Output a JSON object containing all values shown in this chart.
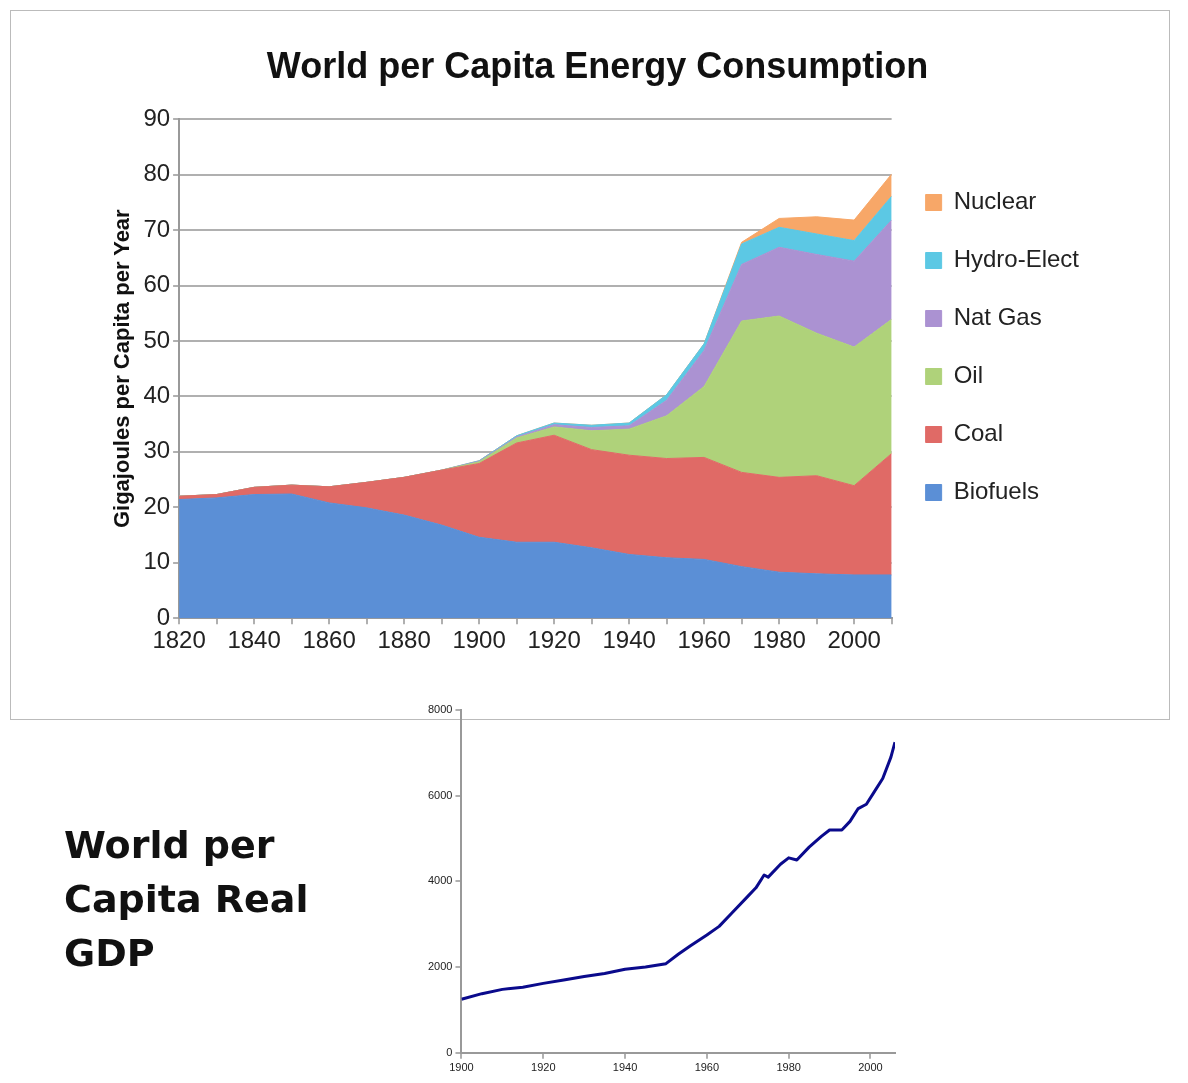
{
  "chart_data": [
    {
      "type": "area",
      "title": "World per Capita Energy Consumption",
      "ylabel": "Gigajoules per Capita per Year",
      "stacked": true,
      "x": [
        1820,
        1830,
        1840,
        1850,
        1860,
        1870,
        1880,
        1890,
        1900,
        1910,
        1920,
        1930,
        1940,
        1950,
        1960,
        1970,
        1980,
        1990,
        2000,
        2010
      ],
      "xlim": [
        1820,
        2010
      ],
      "xticks": [
        1820,
        {
          "value": 1830,
          "label": null
        },
        1840,
        {
          "value": 1850,
          "label": null
        },
        1860,
        {
          "value": 1870,
          "label": null
        },
        1880,
        {
          "value": 1890,
          "label": null
        },
        1900,
        {
          "value": 1910,
          "label": null
        },
        1920,
        {
          "value": 1930,
          "label": null
        },
        1940,
        {
          "value": 1950,
          "label": null
        },
        1960,
        {
          "value": 1970,
          "label": null
        },
        1980,
        {
          "value": 1990,
          "label": null
        },
        2000,
        {
          "value": 2010,
          "label": null
        }
      ],
      "ylim": [
        0,
        90
      ],
      "yticks": [
        0,
        10,
        20,
        30,
        40,
        50,
        60,
        70,
        80,
        90
      ],
      "grid": "y",
      "legend": "right",
      "marker": "none",
      "series": [
        {
          "name": "Biofuels",
          "color": "#5b8fd6",
          "values": [
            21.4,
            21.7,
            22.3,
            22.4,
            20.8,
            19.9,
            18.6,
            16.8,
            14.6,
            13.7,
            13.7,
            12.7,
            11.5,
            10.9,
            10.6,
            9.3,
            8.3,
            8.0,
            7.8,
            7.8
          ]
        },
        {
          "name": "Coal",
          "color": "#e06a66",
          "values": [
            0.6,
            0.6,
            1.3,
            1.6,
            2.9,
            4.6,
            6.8,
            9.9,
            13.3,
            17.9,
            19.3,
            17.7,
            17.9,
            17.9,
            18.4,
            17.0,
            17.1,
            17.7,
            16.1,
            21.9
          ]
        },
        {
          "name": "Oil",
          "color": "#afd27a",
          "values": [
            0,
            0,
            0,
            0,
            0,
            0,
            0,
            0,
            0.3,
            0.9,
            1.5,
            3.4,
            4.7,
            7.7,
            12.8,
            27.3,
            29.1,
            25.7,
            25.0,
            24.2
          ]
        },
        {
          "name": "Nat Gas",
          "color": "#ab92d2",
          "values": [
            0,
            0,
            0,
            0,
            0,
            0,
            0,
            0,
            0.1,
            0.2,
            0.4,
            0.6,
            0.6,
            2.8,
            6.5,
            10.2,
            12.4,
            14.2,
            15.5,
            17.9
          ]
        },
        {
          "name": "Hydro-Elect",
          "color": "#5cc8e4",
          "values": [
            0,
            0,
            0,
            0,
            0,
            0,
            0,
            0,
            0.1,
            0.2,
            0.3,
            0.4,
            0.5,
            1.0,
            1.2,
            3.7,
            3.6,
            3.7,
            3.7,
            4.3
          ]
        },
        {
          "name": "Nuclear",
          "color": "#f7a768",
          "values": [
            0,
            0,
            0,
            0,
            0,
            0,
            0,
            0,
            0,
            0,
            0,
            0,
            0,
            0,
            0,
            0.3,
            1.6,
            3.1,
            3.7,
            4.0
          ]
        }
      ]
    },
    {
      "type": "line",
      "title": "World per Capita Real GDP",
      "x": [
        1900,
        1905,
        1910,
        1915,
        1920,
        1925,
        1930,
        1935,
        1940,
        1945,
        1950,
        1953,
        1956,
        1960,
        1963,
        1966,
        1970,
        1972,
        1974,
        1975,
        1978,
        1980,
        1982,
        1985,
        1988,
        1990,
        1993,
        1995,
        1997,
        1999,
        2001,
        2003,
        2005,
        2006
      ],
      "xlim": [
        1900,
        2006
      ],
      "xticks": [
        1900,
        1920,
        1940,
        1960,
        1980,
        2000
      ],
      "ylim": [
        0,
        8000
      ],
      "yticks": [
        0,
        2000,
        4000,
        6000,
        8000
      ],
      "grid": false,
      "legend": false,
      "marker": "none",
      "series": [
        {
          "color": "#0a0a8c",
          "values": [
            1250,
            1380,
            1480,
            1530,
            1620,
            1700,
            1780,
            1850,
            1950,
            2000,
            2080,
            2300,
            2500,
            2750,
            2950,
            3250,
            3650,
            3850,
            4150,
            4100,
            4400,
            4550,
            4500,
            4800,
            5050,
            5200,
            5200,
            5400,
            5700,
            5800,
            6100,
            6400,
            6900,
            7250
          ]
        }
      ]
    }
  ]
}
